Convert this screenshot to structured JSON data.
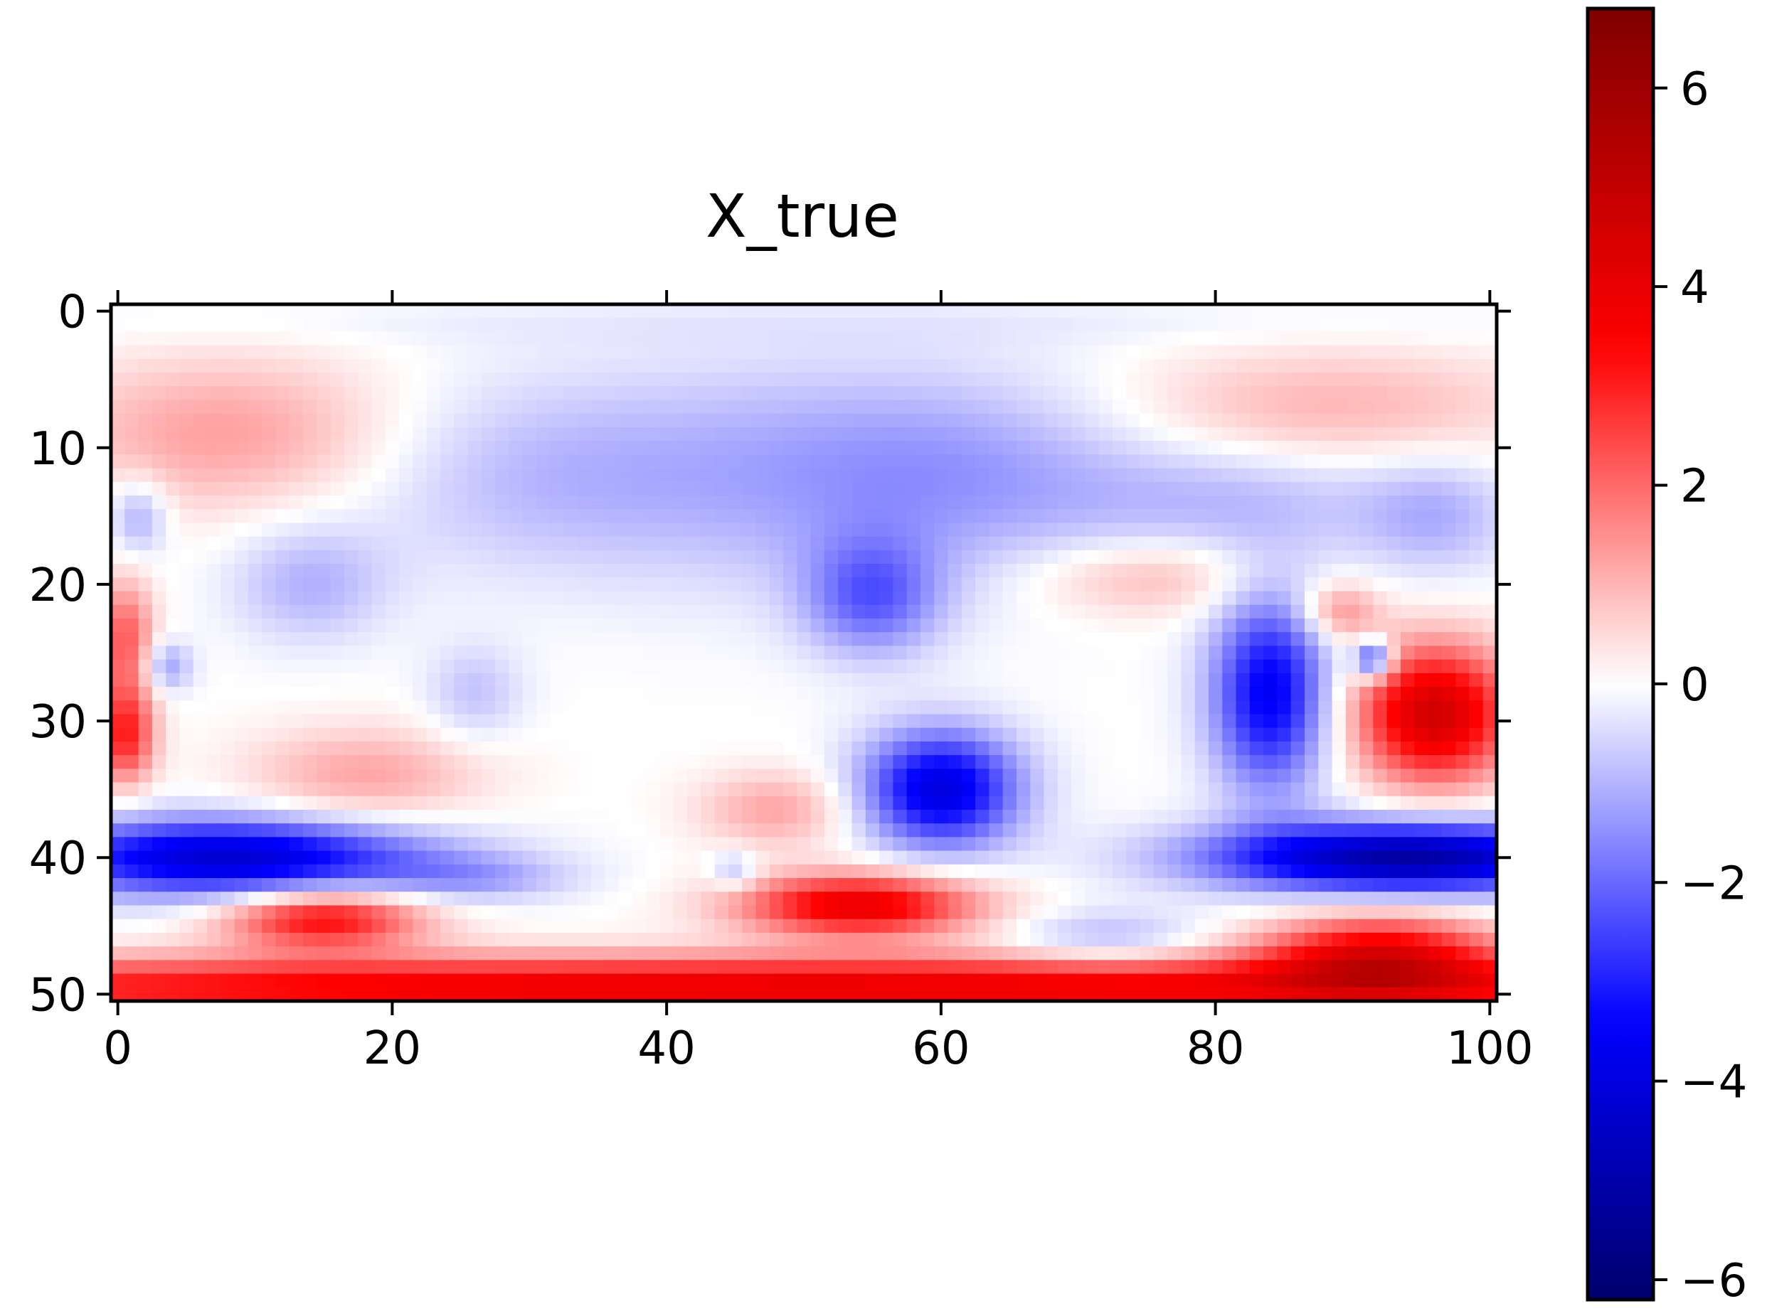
{
  "chart_data": {
    "type": "heatmap",
    "title": "X_true",
    "xlabel": "",
    "ylabel": "",
    "grid": false,
    "x_range": [
      0,
      100
    ],
    "y_range": [
      0,
      50
    ],
    "y_inverted": true,
    "x_ticks": [
      0,
      20,
      40,
      60,
      80,
      100
    ],
    "y_ticks": [
      0,
      10,
      20,
      30,
      40,
      50
    ],
    "x_tick_labels": [
      "0",
      "20",
      "40",
      "60",
      "80",
      "100"
    ],
    "y_tick_labels": [
      "0",
      "10",
      "20",
      "30",
      "40",
      "50"
    ],
    "colormap": "seismic",
    "colormap_stops": [
      "#00004c",
      "#0000ff",
      "#ffffff",
      "#ff0000",
      "#7f0000"
    ],
    "colorbar": {
      "range": [
        -6.2,
        6.8
      ],
      "ticks": [
        -6,
        -4,
        -2,
        0,
        2,
        4,
        6
      ],
      "tick_labels": [
        "−6",
        "−4",
        "−2",
        "0",
        "2",
        "4",
        "6"
      ]
    },
    "field_features": [
      {
        "x": 50,
        "y": 1,
        "sx": 60,
        "sy": 1.2,
        "value": -0.2
      },
      {
        "x": 8,
        "y": 9,
        "sx": 9,
        "sy": 4,
        "value": 1.3
      },
      {
        "x": 88,
        "y": 7,
        "sx": 11,
        "sy": 3,
        "value": 1.0
      },
      {
        "x": 30,
        "y": 12,
        "sx": 10,
        "sy": 5,
        "value": -0.8
      },
      {
        "x": 50,
        "y": 12,
        "sx": 12,
        "sy": 6,
        "value": -0.9
      },
      {
        "x": 63,
        "y": 12,
        "sx": 10,
        "sy": 5,
        "value": -0.9
      },
      {
        "x": 82,
        "y": 14,
        "sx": 8,
        "sy": 3,
        "value": -0.8
      },
      {
        "x": 96,
        "y": 15,
        "sx": 4,
        "sy": 3,
        "value": -1.0
      },
      {
        "x": 1.5,
        "y": 15,
        "sx": 1.5,
        "sy": 2,
        "value": -1.2
      },
      {
        "x": 14,
        "y": 20,
        "sx": 4,
        "sy": 3,
        "value": -1.0
      },
      {
        "x": 55,
        "y": 21,
        "sx": 3.5,
        "sy": 3,
        "value": -2.0
      },
      {
        "x": 75,
        "y": 19.5,
        "sx": 6,
        "sy": 2,
        "value": 1.0
      },
      {
        "x": 89,
        "y": 22,
        "sx": 2,
        "sy": 1.5,
        "value": 1.5
      },
      {
        "x": 0.5,
        "y": 24,
        "sx": 1.5,
        "sy": 3,
        "value": 2.2
      },
      {
        "x": 3.5,
        "y": 26,
        "sx": 1.3,
        "sy": 1.3,
        "value": -1.3
      },
      {
        "x": 26,
        "y": 28,
        "sx": 2.5,
        "sy": 2.5,
        "value": -0.8
      },
      {
        "x": 0.5,
        "y": 31,
        "sx": 1.5,
        "sy": 2.5,
        "value": 3.0
      },
      {
        "x": 18,
        "y": 34,
        "sx": 6,
        "sy": 2.5,
        "value": 1.2
      },
      {
        "x": 48,
        "y": 36.5,
        "sx": 4,
        "sy": 2,
        "value": 1.2
      },
      {
        "x": 60,
        "y": 35,
        "sx": 4,
        "sy": 3,
        "value": -4.0
      },
      {
        "x": 84,
        "y": 28,
        "sx": 3,
        "sy": 5,
        "value": -3.6
      },
      {
        "x": 91.5,
        "y": 25.5,
        "sx": 1,
        "sy": 1,
        "value": -3.0
      },
      {
        "x": 96,
        "y": 29.5,
        "sx": 4,
        "sy": 3.5,
        "value": 4.6
      },
      {
        "x": 8,
        "y": 40,
        "sx": 10,
        "sy": 2,
        "value": -4.3
      },
      {
        "x": 94,
        "y": 40,
        "sx": 10,
        "sy": 1.8,
        "value": -5.2
      },
      {
        "x": 45,
        "y": 41,
        "sx": 1.2,
        "sy": 1,
        "value": -1.0
      },
      {
        "x": 26,
        "y": 41.5,
        "sx": 5,
        "sy": 1.2,
        "value": -1.0
      },
      {
        "x": 15,
        "y": 44.5,
        "sx": 5,
        "sy": 1.5,
        "value": 3.4
      },
      {
        "x": 54,
        "y": 43.5,
        "sx": 6,
        "sy": 1.6,
        "value": 4.0
      },
      {
        "x": 72,
        "y": 46,
        "sx": 5,
        "sy": 1.5,
        "value": -1.0
      },
      {
        "x": 92,
        "y": 47,
        "sx": 6,
        "sy": 2,
        "value": 3.6
      },
      {
        "x": 50,
        "y": 49.5,
        "sx": 70,
        "sy": 1.6,
        "value": 4.0
      }
    ]
  }
}
